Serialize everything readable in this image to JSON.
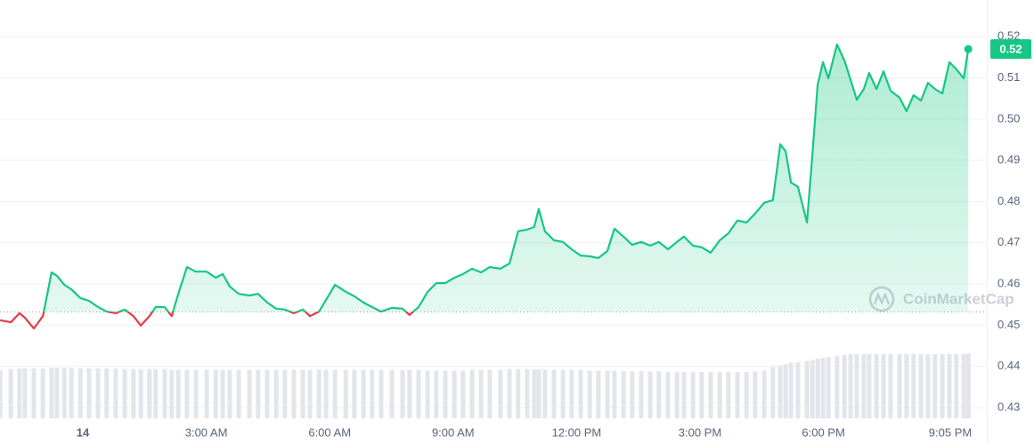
{
  "chart_data": {
    "type": "line",
    "x": [
      -2.01,
      -1.75,
      -1.54,
      -1.41,
      -1.19,
      -0.97,
      -0.76,
      -0.63,
      -0.45,
      -0.28,
      -0.06,
      0.15,
      0.37,
      0.58,
      0.8,
      1.02,
      1.23,
      1.41,
      1.62,
      1.77,
      1.99,
      2.16,
      2.32,
      2.53,
      2.75,
      3.01,
      3.23,
      3.4,
      3.57,
      3.79,
      4.05,
      4.26,
      4.48,
      4.7,
      4.91,
      5.13,
      5.35,
      5.52,
      5.74,
      5.91,
      6.13,
      6.39,
      6.6,
      6.82,
      7.03,
      7.25,
      7.51,
      7.77,
      7.94,
      8.16,
      8.38,
      8.59,
      8.81,
      9.03,
      9.24,
      9.46,
      9.68,
      9.89,
      10.15,
      10.37,
      10.58,
      10.8,
      10.97,
      11.08,
      11.23,
      11.45,
      11.67,
      11.88,
      12.1,
      12.32,
      12.53,
      12.75,
      12.92,
      13.14,
      13.35,
      13.57,
      13.79,
      14.0,
      14.22,
      14.44,
      14.61,
      14.83,
      15.04,
      15.26,
      15.48,
      15.69,
      15.91,
      16.13,
      16.34,
      16.56,
      16.77,
      16.95,
      17.08,
      17.21,
      17.38,
      17.6,
      17.73,
      17.86,
      17.99,
      18.12,
      18.33,
      18.51,
      18.66,
      18.81,
      18.98,
      19.11,
      19.29,
      19.46,
      19.63,
      19.85,
      20.02,
      20.19,
      20.37,
      20.54,
      20.71,
      20.89,
      21.06,
      21.23,
      21.41,
      21.52
    ],
    "values": [
      0.4512,
      0.4507,
      0.4529,
      0.4518,
      0.4492,
      0.4522,
      0.4628,
      0.462,
      0.4598,
      0.4587,
      0.4566,
      0.4559,
      0.4544,
      0.4533,
      0.4529,
      0.4538,
      0.4522,
      0.4499,
      0.4522,
      0.4544,
      0.4544,
      0.4522,
      0.4576,
      0.4641,
      0.463,
      0.463,
      0.4615,
      0.4624,
      0.4594,
      0.4576,
      0.4572,
      0.4576,
      0.4555,
      0.454,
      0.4538,
      0.4529,
      0.4538,
      0.4522,
      0.4533,
      0.4561,
      0.4598,
      0.4581,
      0.457,
      0.4555,
      0.4544,
      0.4533,
      0.4542,
      0.454,
      0.4525,
      0.4544,
      0.4581,
      0.4602,
      0.4602,
      0.4615,
      0.4624,
      0.4637,
      0.4628,
      0.4641,
      0.4637,
      0.465,
      0.4728,
      0.4732,
      0.4738,
      0.4782,
      0.4728,
      0.4706,
      0.4702,
      0.4684,
      0.4669,
      0.4667,
      0.4663,
      0.468,
      0.4734,
      0.4715,
      0.4695,
      0.4702,
      0.4693,
      0.4702,
      0.4684,
      0.4702,
      0.4715,
      0.4693,
      0.4689,
      0.4676,
      0.4706,
      0.4723,
      0.4754,
      0.4749,
      0.4771,
      0.4797,
      0.4803,
      0.4939,
      0.4922,
      0.4846,
      0.4836,
      0.4749,
      0.4911,
      0.5084,
      0.5138,
      0.5099,
      0.5181,
      0.5142,
      0.5095,
      0.5047,
      0.5073,
      0.5112,
      0.5073,
      0.5116,
      0.5069,
      0.5052,
      0.5019,
      0.5058,
      0.5045,
      0.5088,
      0.5073,
      0.5062,
      0.5138,
      0.5121,
      0.5099,
      0.517
    ],
    "volume": [
      68,
      69,
      70,
      70,
      70,
      70,
      71,
      71,
      71,
      71,
      70,
      70,
      70,
      70,
      70,
      69,
      69,
      69,
      69,
      69,
      69,
      68,
      68,
      68,
      68,
      68,
      68,
      68,
      68,
      68,
      68,
      68,
      68,
      68,
      68,
      68,
      68,
      68,
      68,
      68,
      68,
      68,
      68,
      68,
      68,
      68,
      68,
      68,
      68,
      68,
      67,
      67,
      67,
      67,
      67,
      68,
      68,
      68,
      68,
      69,
      69,
      69,
      69,
      69,
      69,
      68,
      68,
      68,
      68,
      67,
      67,
      67,
      67,
      66,
      66,
      66,
      66,
      66,
      65,
      65,
      65,
      65,
      65,
      65,
      65,
      65,
      65,
      65,
      66,
      67,
      72,
      74,
      76,
      78,
      79,
      80,
      82,
      84,
      85,
      86,
      88,
      89,
      90,
      90,
      90,
      90,
      90,
      90,
      90,
      90,
      90,
      90,
      90,
      90,
      90,
      90,
      90,
      90,
      90,
      91
    ],
    "volume_lim": [
      0,
      100
    ],
    "reference": 0.4532,
    "up_color": "#16c784",
    "down_color": "#ea3943",
    "volume_color": "#e3e5ea",
    "xlim": [
      -2.013,
      21.97
    ],
    "ylim": [
      0.4274,
      0.5289
    ],
    "xticks": [
      {
        "value": 0,
        "label": "14"
      },
      {
        "value": 3,
        "label": "3:00 AM"
      },
      {
        "value": 6,
        "label": "6:00 AM"
      },
      {
        "value": 9,
        "label": "9:00 AM"
      },
      {
        "value": 12,
        "label": "12:00 PM"
      },
      {
        "value": 15,
        "label": "3:00 PM"
      },
      {
        "value": 18,
        "label": "6:00 PM"
      },
      {
        "value": 21.083,
        "label": "9:05 PM"
      }
    ],
    "yticks": [
      0.43,
      0.44,
      0.45,
      0.46,
      0.47,
      0.48,
      0.49,
      {
        "value": 0.5,
        "label": "0.50"
      },
      0.51,
      0.52
    ],
    "grid": true,
    "last_value_label": "0.52",
    "watermark": "CoinMarketCap"
  }
}
